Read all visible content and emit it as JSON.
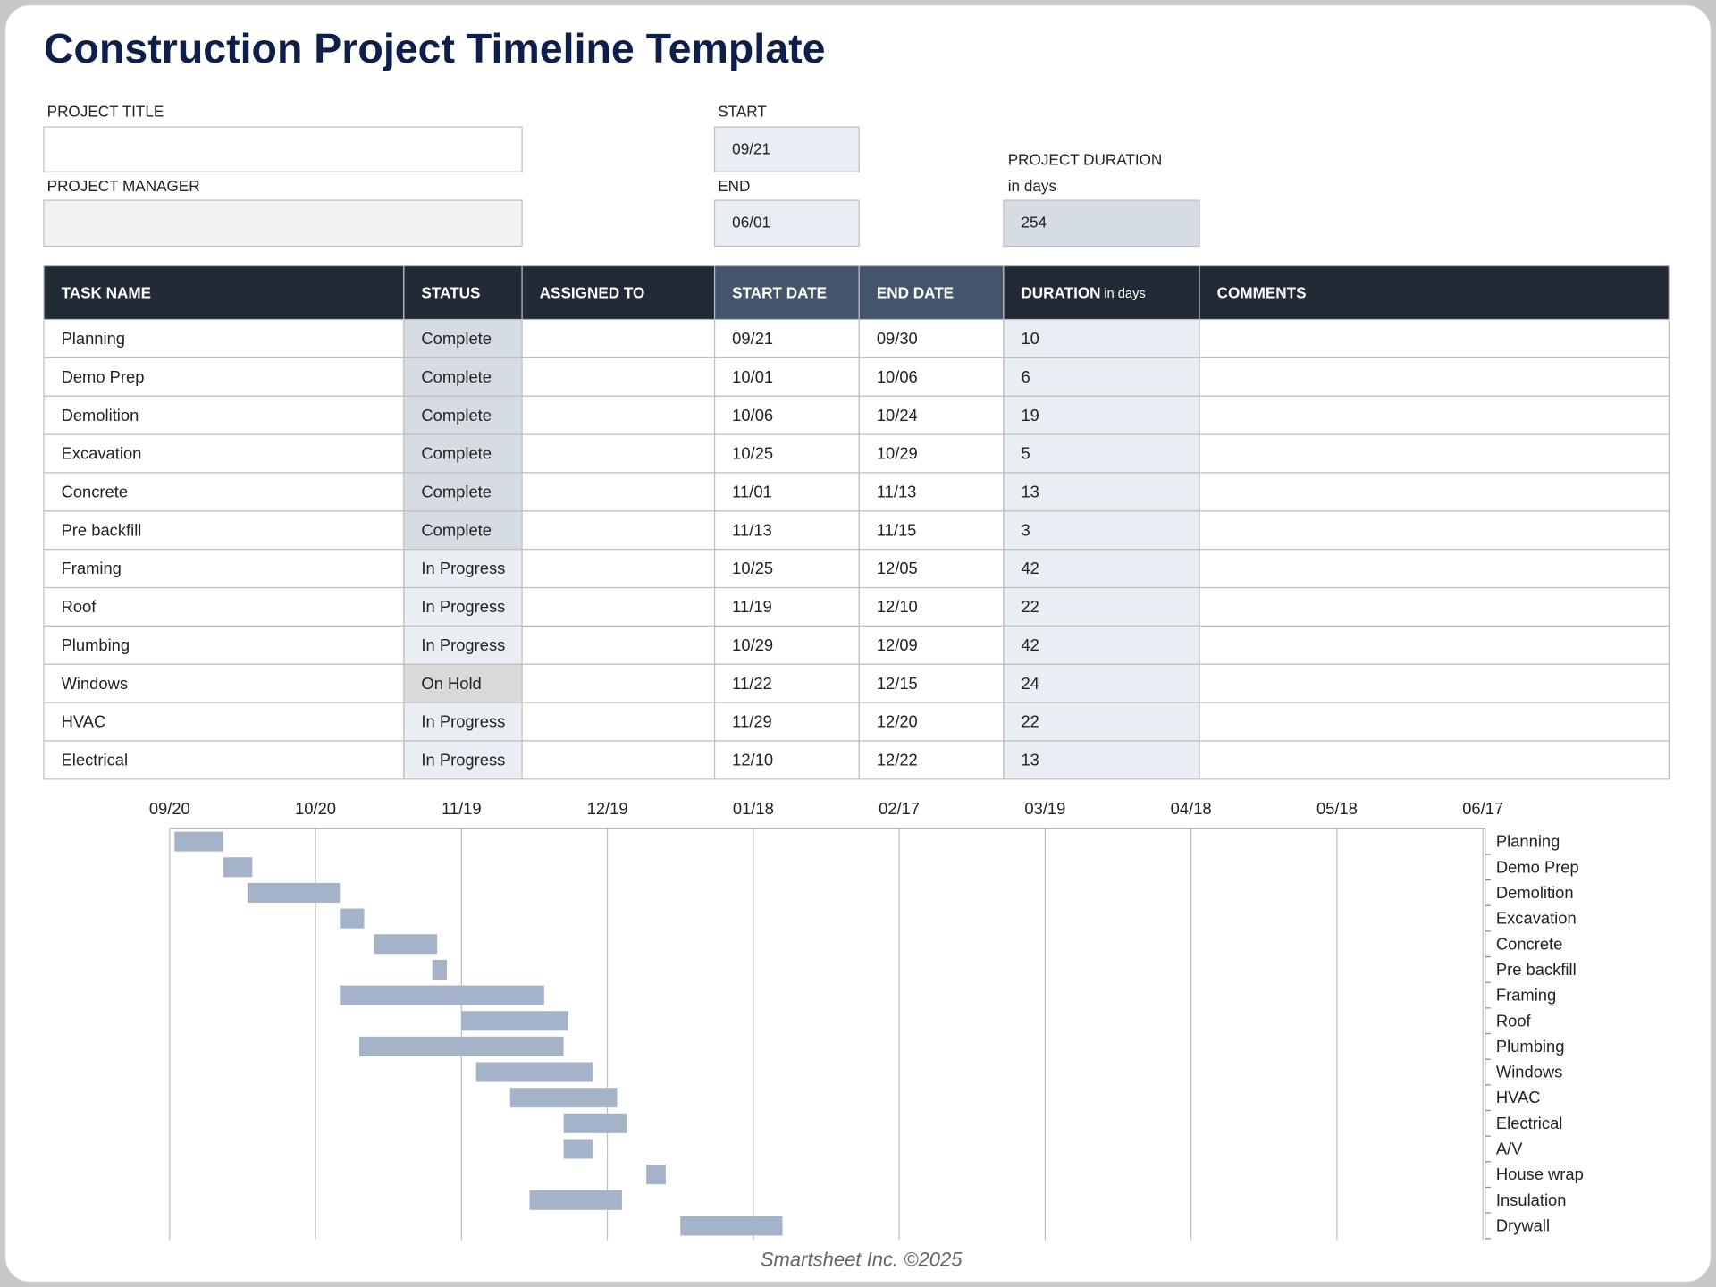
{
  "header": {
    "title": "Construction Project Timeline Template"
  },
  "form": {
    "project_title_label": "PROJECT TITLE",
    "project_manager_label": "PROJECT MANAGER",
    "start_label": "START",
    "start": "09/21",
    "end_label": "END",
    "end": "06/01",
    "duration_label": "PROJECT DURATION",
    "duration_unit": "in days",
    "duration": 254
  },
  "table": {
    "columns": [
      "TASK NAME",
      "STATUS",
      "ASSIGNED TO",
      "START DATE",
      "END DATE",
      "DURATION",
      "COMMENTS"
    ],
    "duration_unit": "in days",
    "rows": [
      {
        "task": "Planning",
        "status": "Complete",
        "status_fill": "#d6dce4",
        "start": "09/21",
        "end": "09/30",
        "duration": 10
      },
      {
        "task": "Demo Prep",
        "status": "Complete",
        "status_fill": "#d6dce4",
        "start": "10/01",
        "end": "10/06",
        "duration": 6
      },
      {
        "task": "Demolition",
        "status": "Complete",
        "status_fill": "#d6dce4",
        "start": "10/06",
        "end": "10/24",
        "duration": 19
      },
      {
        "task": "Excavation",
        "status": "Complete",
        "status_fill": "#d6dce4",
        "start": "10/25",
        "end": "10/29",
        "duration": 5
      },
      {
        "task": "Concrete",
        "status": "Complete",
        "status_fill": "#d6dce4",
        "start": "11/01",
        "end": "11/13",
        "duration": 13
      },
      {
        "task": "Pre backfill",
        "status": "Complete",
        "status_fill": "#d6dce4",
        "start": "11/13",
        "end": "11/15",
        "duration": 3
      },
      {
        "task": "Framing",
        "status": "In Progress",
        "status_fill": "#e9edf4",
        "start": "10/25",
        "end": "12/05",
        "duration": 42
      },
      {
        "task": "Roof",
        "status": "In Progress",
        "status_fill": "#e9edf4",
        "start": "11/19",
        "end": "12/10",
        "duration": 22
      },
      {
        "task": "Plumbing",
        "status": "In Progress",
        "status_fill": "#e9edf4",
        "start": "10/29",
        "end": "12/09",
        "duration": 42
      },
      {
        "task": "Windows",
        "status": "On Hold",
        "status_fill": "#d9d9d9",
        "start": "11/22",
        "end": "12/15",
        "duration": 24
      },
      {
        "task": "HVAC",
        "status": "In Progress",
        "status_fill": "#e9edf4",
        "start": "11/29",
        "end": "12/20",
        "duration": 22
      },
      {
        "task": "Electrical",
        "status": "In Progress",
        "status_fill": "#e9edf4",
        "start": "12/10",
        "end": "12/22",
        "duration": 13
      }
    ]
  },
  "chart_data": {
    "type": "gantt",
    "categories": [
      "Planning",
      "Demo Prep",
      "Demolition",
      "Excavation",
      "Concrete",
      "Pre backfill",
      "Framing",
      "Roof",
      "Plumbing",
      "Windows",
      "HVAC",
      "Electrical",
      "A/V",
      "House wrap",
      "Insulation",
      "Drywall"
    ],
    "starts": [
      1,
      11,
      16,
      35,
      42,
      54,
      35,
      60,
      39,
      63,
      70,
      81,
      81,
      98,
      74,
      105
    ],
    "durations": [
      10,
      6,
      19,
      5,
      13,
      3,
      42,
      22,
      42,
      24,
      22,
      13,
      6,
      4,
      19,
      21
    ],
    "color": "#a5b3c9",
    "xlim": [
      0,
      270
    ],
    "xticks": [
      {
        "value": 0,
        "label": "09/20"
      },
      {
        "value": 30,
        "label": "10/20"
      },
      {
        "value": 60,
        "label": "11/19"
      },
      {
        "value": 90,
        "label": "12/19"
      },
      {
        "value": 120,
        "label": "01/18"
      },
      {
        "value": 150,
        "label": "02/17"
      },
      {
        "value": 180,
        "label": "03/19"
      },
      {
        "value": 210,
        "label": "04/18"
      },
      {
        "value": 240,
        "label": "05/18"
      },
      {
        "value": 270,
        "label": "06/17"
      }
    ],
    "grid": true
  },
  "footer": "Smartsheet Inc. ©2025"
}
